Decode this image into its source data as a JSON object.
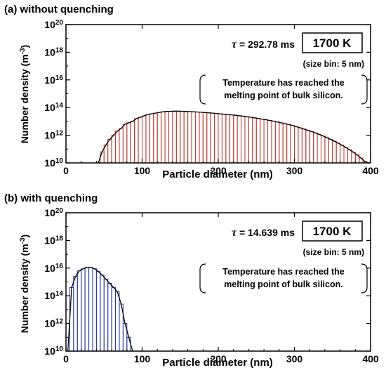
{
  "chart_data": [
    {
      "type": "bar",
      "panel_label": "(a) without quenching",
      "xlabel": "Particle diameter (nm)",
      "ylabel": "Number density (m^-3)",
      "ylabel_main": "Number density (m",
      "ylabel_sup": "-3",
      "ylabel_close": ")",
      "xlim": [
        0,
        400
      ],
      "xticks": [
        0,
        100,
        200,
        300,
        400
      ],
      "ylim_log10": [
        10,
        20
      ],
      "yticks": [
        {
          "base": "10",
          "exp": "10"
        },
        {
          "base": "10",
          "exp": "12"
        },
        {
          "base": "10",
          "exp": "14"
        },
        {
          "base": "10",
          "exp": "16"
        },
        {
          "base": "10",
          "exp": "18"
        },
        {
          "base": "10",
          "exp": "20"
        }
      ],
      "tau_symbol": "τ",
      "tau_value": "= 292.78 ms",
      "temperature": "1700 K",
      "size_bin": "(size bin: 5 nm)",
      "note_line1": "Temperature has reached the",
      "note_line2": "melting point of bulk silicon.",
      "bar_color": "#c0392b",
      "bin_width_nm": 5,
      "points": [
        [
          40,
          10.0
        ],
        [
          45,
          10.8
        ],
        [
          50,
          11.3
        ],
        [
          55,
          11.7
        ],
        [
          60,
          12.0
        ],
        [
          65,
          12.3
        ],
        [
          70,
          12.5
        ],
        [
          75,
          12.8
        ],
        [
          80,
          12.9
        ],
        [
          85,
          13.0
        ],
        [
          90,
          13.2
        ],
        [
          95,
          13.3
        ],
        [
          100,
          13.4
        ],
        [
          105,
          13.5
        ],
        [
          110,
          13.55
        ],
        [
          115,
          13.6
        ],
        [
          120,
          13.65
        ],
        [
          125,
          13.7
        ],
        [
          130,
          13.72
        ],
        [
          135,
          13.73
        ],
        [
          140,
          13.74
        ],
        [
          145,
          13.74
        ],
        [
          150,
          13.73
        ],
        [
          155,
          13.72
        ],
        [
          160,
          13.71
        ],
        [
          165,
          13.7
        ],
        [
          170,
          13.68
        ],
        [
          175,
          13.66
        ],
        [
          180,
          13.64
        ],
        [
          185,
          13.62
        ],
        [
          190,
          13.6
        ],
        [
          195,
          13.58
        ],
        [
          200,
          13.55
        ],
        [
          205,
          13.52
        ],
        [
          210,
          13.5
        ],
        [
          215,
          13.47
        ],
        [
          220,
          13.44
        ],
        [
          225,
          13.41
        ],
        [
          230,
          13.38
        ],
        [
          235,
          13.34
        ],
        [
          240,
          13.3
        ],
        [
          245,
          13.26
        ],
        [
          250,
          13.22
        ],
        [
          255,
          13.17
        ],
        [
          260,
          13.12
        ],
        [
          265,
          13.07
        ],
        [
          270,
          13.02
        ],
        [
          275,
          12.96
        ],
        [
          280,
          12.9
        ],
        [
          285,
          12.84
        ],
        [
          290,
          12.77
        ],
        [
          295,
          12.7
        ],
        [
          300,
          12.62
        ],
        [
          305,
          12.54
        ],
        [
          310,
          12.45
        ],
        [
          315,
          12.36
        ],
        [
          320,
          12.27
        ],
        [
          325,
          12.17
        ],
        [
          330,
          12.06
        ],
        [
          335,
          11.95
        ],
        [
          340,
          11.83
        ],
        [
          345,
          11.7
        ],
        [
          350,
          11.57
        ],
        [
          355,
          11.43
        ],
        [
          360,
          11.28
        ],
        [
          365,
          11.12
        ],
        [
          370,
          10.95
        ],
        [
          375,
          10.77
        ],
        [
          380,
          10.57
        ],
        [
          385,
          10.35
        ],
        [
          390,
          10.1
        ],
        [
          395,
          10.0
        ]
      ]
    },
    {
      "type": "bar",
      "panel_label": "(b) with quenching",
      "xlabel": "Particle diameter (nm)",
      "ylabel": "Number density (m^-3)",
      "ylabel_main": "Number density (m",
      "ylabel_sup": "-3",
      "ylabel_close": ")",
      "xlim": [
        0,
        400
      ],
      "xticks": [
        0,
        100,
        200,
        300,
        400
      ],
      "ylim_log10": [
        10,
        20
      ],
      "yticks": [
        {
          "base": "10",
          "exp": "10"
        },
        {
          "base": "10",
          "exp": "12"
        },
        {
          "base": "10",
          "exp": "14"
        },
        {
          "base": "10",
          "exp": "16"
        },
        {
          "base": "10",
          "exp": "18"
        },
        {
          "base": "10",
          "exp": "20"
        }
      ],
      "tau_symbol": "τ",
      "tau_value": "= 14.639 ms",
      "temperature": "1700 K",
      "size_bin": "(size bin: 5 nm)",
      "note_line1": "Temperature has reached the",
      "note_line2": "melting point of bulk silicon.",
      "bar_color": "#1f3a9e",
      "bin_width_nm": 5,
      "points": [
        [
          0,
          10.0
        ],
        [
          5,
          14.6
        ],
        [
          10,
          15.4
        ],
        [
          15,
          15.8
        ],
        [
          20,
          15.95
        ],
        [
          25,
          16.05
        ],
        [
          30,
          16.05
        ],
        [
          35,
          15.95
        ],
        [
          40,
          15.75
        ],
        [
          45,
          15.5
        ],
        [
          50,
          15.2
        ],
        [
          55,
          14.9
        ],
        [
          60,
          14.6
        ],
        [
          65,
          14.3
        ],
        [
          70,
          13.4
        ],
        [
          75,
          12.0
        ],
        [
          80,
          11.0
        ],
        [
          85,
          10.0
        ]
      ]
    }
  ]
}
